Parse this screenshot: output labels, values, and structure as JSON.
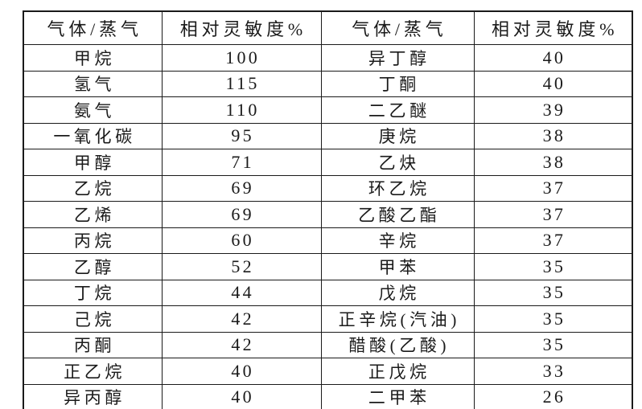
{
  "page": {
    "background_color": "#ffffff",
    "border_color": "#1a1a1a",
    "text_color": "#1a1a1a"
  },
  "table": {
    "headers": [
      "气体/蒸气",
      "相对灵敏度%",
      "气体/蒸气",
      "相对灵敏度%"
    ],
    "rows": [
      [
        "甲烷",
        "100",
        "异丁醇",
        "40"
      ],
      [
        "氢气",
        "115",
        "丁酮",
        "40"
      ],
      [
        "氨气",
        "110",
        "二乙醚",
        "39"
      ],
      [
        "一氧化碳",
        "95",
        "庚烷",
        "38"
      ],
      [
        "甲醇",
        "71",
        "乙炔",
        "38"
      ],
      [
        "乙烷",
        "69",
        "环乙烷",
        "37"
      ],
      [
        "乙烯",
        "69",
        "乙酸乙酯",
        "37"
      ],
      [
        "丙烷",
        "60",
        "辛烷",
        "37"
      ],
      [
        "乙醇",
        "52",
        "甲苯",
        "35"
      ],
      [
        "丁烷",
        "44",
        "戊烷",
        "35"
      ],
      [
        "己烷",
        "42",
        "正辛烷(汽油)",
        "35"
      ],
      [
        "丙酮",
        "42",
        "醋酸(乙酸)",
        "35"
      ],
      [
        "正乙烷",
        "40",
        "正戊烷",
        "33"
      ],
      [
        "异丙醇",
        "40",
        "二甲苯",
        "26"
      ]
    ]
  }
}
